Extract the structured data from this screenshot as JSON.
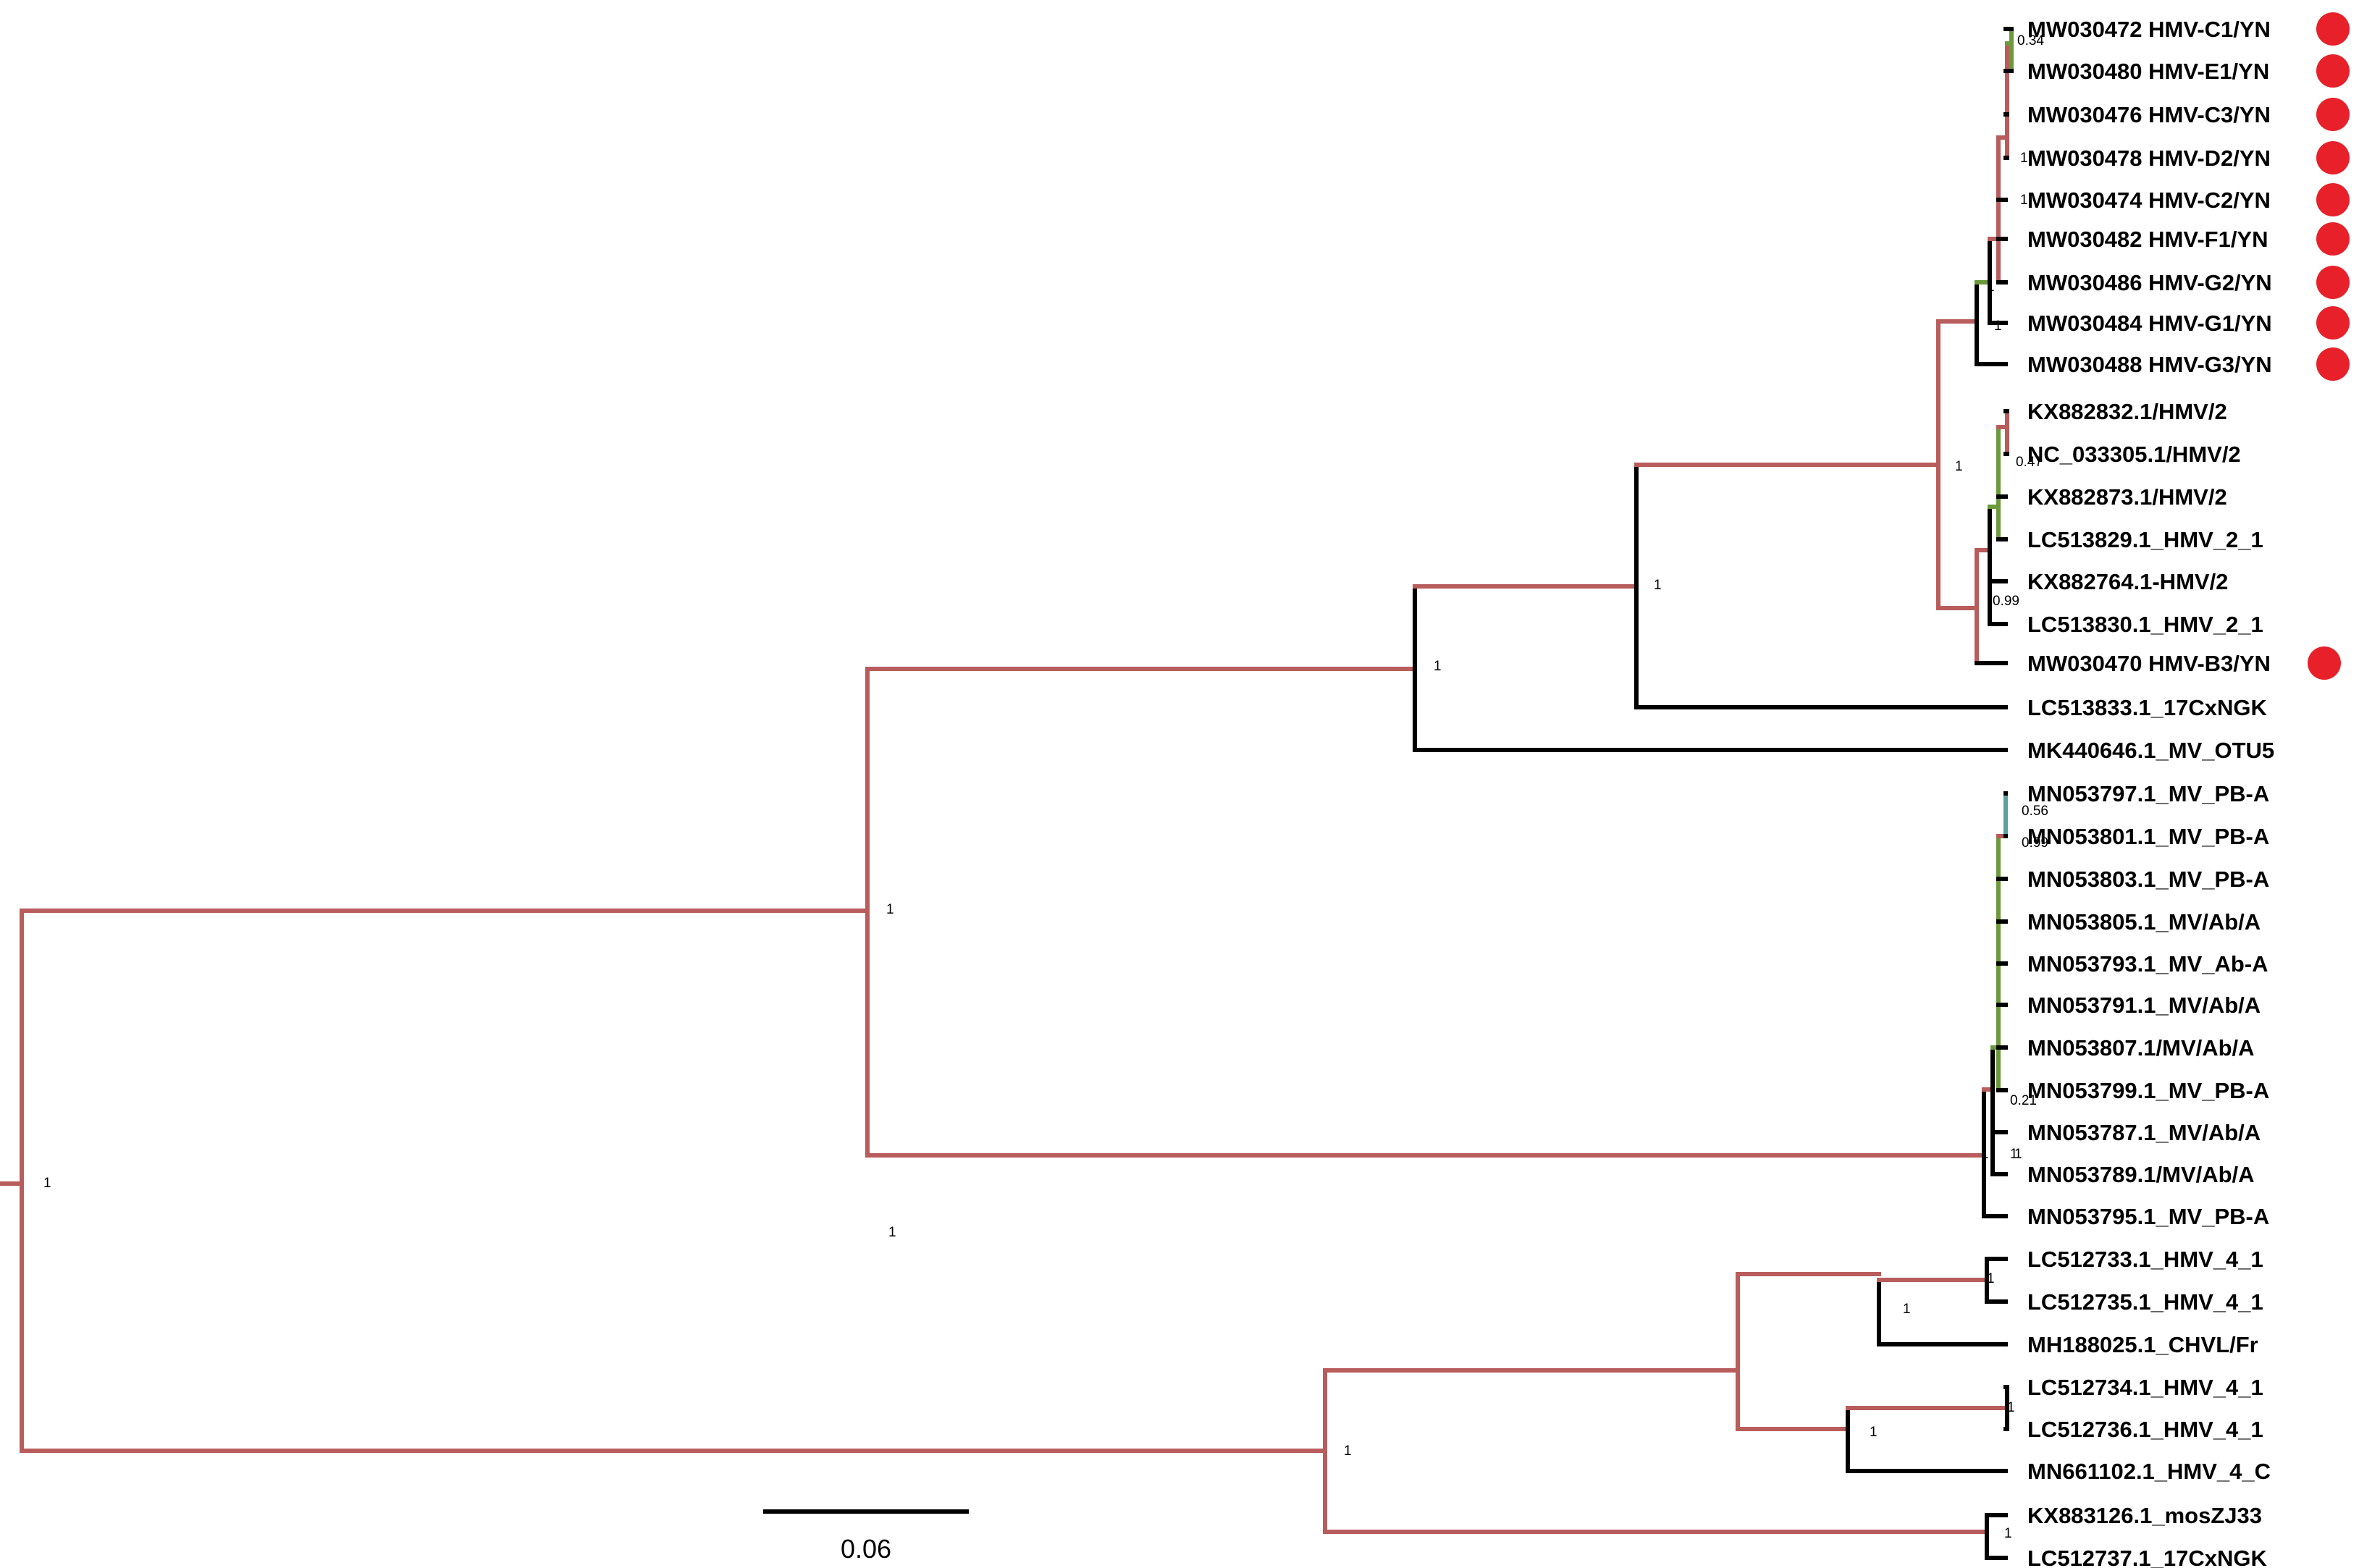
{
  "colors": {
    "internal_branch": "#b85c5c",
    "terminal_branch": "#000000",
    "marker": "#e8202a",
    "green_branch": "#6a9a3a",
    "teal_branch": "#5aa0a0"
  },
  "leaves": [
    {
      "label": "MW030472 HMV-C1/YN",
      "marked": true
    },
    {
      "label": "MW030480 HMV-E1/YN",
      "marked": true
    },
    {
      "label": "MW030476 HMV-C3/YN",
      "marked": true
    },
    {
      "label": "MW030478 HMV-D2/YN",
      "marked": true
    },
    {
      "label": "MW030474 HMV-C2/YN",
      "marked": true
    },
    {
      "label": "MW030482 HMV-F1/YN",
      "marked": true
    },
    {
      "label": "MW030486 HMV-G2/YN",
      "marked": true
    },
    {
      "label": "MW030484 HMV-G1/YN",
      "marked": true
    },
    {
      "label": "MW030488 HMV-G3/YN",
      "marked": true
    },
    {
      "label": "KX882832.1/HMV/2",
      "marked": false
    },
    {
      "label": "NC_033305.1/HMV/2",
      "marked": false
    },
    {
      "label": "KX882873.1/HMV/2",
      "marked": false
    },
    {
      "label": "LC513829.1_HMV_2_1",
      "marked": false
    },
    {
      "label": "KX882764.1-HMV/2",
      "marked": false
    },
    {
      "label": "LC513830.1_HMV_2_1",
      "marked": false
    },
    {
      "label": "MW030470 HMV-B3/YN",
      "marked": true
    },
    {
      "label": "LC513833.1_17CxNGK",
      "marked": false
    },
    {
      "label": "MK440646.1_MV_OTU5",
      "marked": false
    },
    {
      "label": "MN053797.1_MV_PB-A",
      "marked": false
    },
    {
      "label": "MN053801.1_MV_PB-A",
      "marked": false
    },
    {
      "label": "MN053803.1_MV_PB-A",
      "marked": false
    },
    {
      "label": "MN053805.1_MV/Ab/A",
      "marked": false
    },
    {
      "label": "MN053793.1_MV_Ab-A",
      "marked": false
    },
    {
      "label": "MN053791.1_MV/Ab/A",
      "marked": false
    },
    {
      "label": "MN053807.1/MV/Ab/A",
      "marked": false
    },
    {
      "label": "MN053799.1_MV_PB-A",
      "marked": false
    },
    {
      "label": "MN053787.1_MV/Ab/A",
      "marked": false
    },
    {
      "label": "MN053789.1/MV/Ab/A",
      "marked": false
    },
    {
      "label": "MN053795.1_MV_PB-A",
      "marked": false
    },
    {
      "label": "LC512733.1_HMV_4_1",
      "marked": false
    },
    {
      "label": "LC512735.1_HMV_4_1",
      "marked": false
    },
    {
      "label": "MH188025.1_CHVL/Fr",
      "marked": false
    },
    {
      "label": "LC512734.1_HMV_4_1",
      "marked": false
    },
    {
      "label": "LC512736.1_HMV_4_1",
      "marked": false
    },
    {
      "label": "MN661102.1_HMV_4_C",
      "marked": false
    },
    {
      "label": "KX883126.1_mosZJ33",
      "marked": false
    },
    {
      "label": "LC512737.1_17CxNGK",
      "marked": false
    }
  ],
  "support_values": [
    "1",
    "1",
    "1",
    "1",
    "1",
    "1",
    "1",
    "1",
    "1",
    "1",
    "1",
    "1",
    "1",
    "1",
    "1",
    "1",
    "1",
    "1",
    "1",
    "0.34",
    "0.47",
    "0.99",
    "0.56",
    "0.99",
    "0.21"
  ],
  "scale_bar": {
    "label": "0.06"
  }
}
